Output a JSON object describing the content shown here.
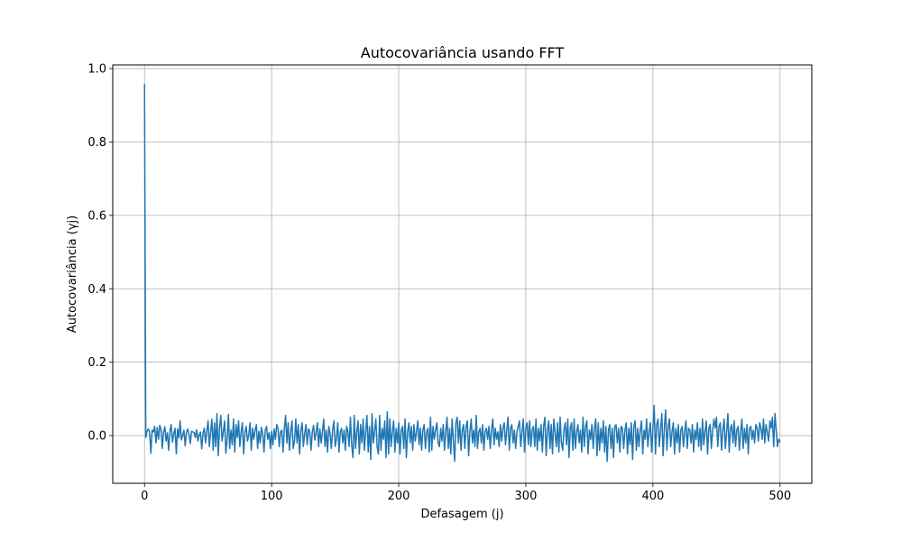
{
  "chart_data": {
    "type": "line",
    "title": "Autocovariância usando FFT",
    "xlabel": "Defasagem (j)",
    "ylabel": "Autocovariância (γj)",
    "xlim": [
      -25,
      525
    ],
    "ylim": [
      -0.13,
      1.01
    ],
    "xticks": [
      0,
      100,
      200,
      300,
      400,
      500
    ],
    "xtick_labels": [
      "0",
      "100",
      "200",
      "300",
      "400",
      "500"
    ],
    "yticks": [
      0.0,
      0.2,
      0.4,
      0.6,
      0.8,
      1.0
    ],
    "ytick_labels": [
      "0.0",
      "0.2",
      "0.4",
      "0.6",
      "0.8",
      "1.0"
    ],
    "grid": true,
    "line_color": "#1f77b4",
    "series": [
      {
        "x_start": 0,
        "x_step": 1,
        "values": [
          0.958,
          -0.005,
          0.012,
          0.018,
          0.01,
          -0.048,
          0.015,
          0.01,
          0.025,
          -0.02,
          0.022,
          -0.01,
          0.028,
          0.016,
          -0.035,
          0.01,
          0.024,
          -0.015,
          0.008,
          -0.04,
          0.012,
          0.03,
          -0.018,
          0.006,
          0.02,
          -0.05,
          0.018,
          -0.006,
          0.04,
          -0.012,
          0.0,
          0.015,
          -0.028,
          0.01,
          0.018,
          0.004,
          -0.022,
          0.012,
          0.01,
          0.008,
          -0.005,
          0.016,
          -0.015,
          0.002,
          0.01,
          -0.036,
          0.006,
          0.02,
          -0.02,
          0.012,
          0.04,
          -0.03,
          0.01,
          0.045,
          -0.04,
          0.035,
          -0.03,
          0.06,
          -0.055,
          0.02,
          0.055,
          -0.015,
          0.01,
          0.04,
          -0.048,
          -0.01,
          0.058,
          -0.035,
          0.015,
          -0.025,
          0.045,
          -0.045,
          0.03,
          -0.005,
          0.04,
          -0.03,
          0.01,
          0.035,
          -0.05,
          0.01,
          0.025,
          -0.015,
          0.0,
          0.035,
          -0.04,
          0.02,
          -0.01,
          0.015,
          0.03,
          -0.035,
          0.012,
          -0.02,
          0.022,
          0.006,
          -0.045,
          0.015,
          0.025,
          -0.01,
          0.008,
          -0.035,
          0.012,
          -0.025,
          0.018,
          -0.01,
          0.03,
          0.02,
          -0.03,
          0.01,
          0.015,
          -0.045,
          0.02,
          0.055,
          -0.02,
          0.035,
          -0.04,
          0.01,
          0.04,
          -0.035,
          -0.015,
          0.045,
          -0.02,
          0.03,
          -0.05,
          0.012,
          0.035,
          -0.03,
          0.005,
          0.03,
          -0.025,
          0.018,
          0.012,
          -0.04,
          0.01,
          0.028,
          -0.012,
          0.008,
          0.035,
          -0.03,
          0.018,
          -0.02,
          0.01,
          0.045,
          -0.03,
          0.015,
          -0.045,
          0.025,
          0.005,
          -0.035,
          0.015,
          0.04,
          -0.03,
          -0.01,
          0.035,
          -0.045,
          0.01,
          0.02,
          -0.02,
          0.015,
          -0.04,
          0.025,
          0.012,
          -0.03,
          0.05,
          -0.025,
          -0.06,
          0.055,
          -0.035,
          0.01,
          0.04,
          -0.05,
          0.03,
          -0.02,
          0.045,
          -0.04,
          0.01,
          0.055,
          -0.045,
          0.025,
          -0.065,
          0.06,
          -0.02,
          0.01,
          0.045,
          -0.03,
          -0.05,
          0.055,
          -0.04,
          0.02,
          -0.01,
          0.04,
          -0.06,
          0.065,
          -0.05,
          0.045,
          -0.03,
          0.01,
          0.04,
          -0.045,
          0.02,
          -0.02,
          0.035,
          -0.05,
          0.015,
          0.025,
          -0.035,
          0.045,
          -0.06,
          0.01,
          0.035,
          -0.02,
          0.025,
          -0.04,
          0.03,
          -0.015,
          0.01,
          0.04,
          -0.025,
          0.02,
          -0.04,
          0.015,
          0.03,
          -0.035,
          0.01,
          0.02,
          -0.045,
          0.05,
          -0.04,
          0.025,
          -0.01,
          0.015,
          0.035,
          -0.02,
          -0.03,
          0.02,
          -0.015,
          0.03,
          -0.04,
          0.01,
          0.05,
          -0.035,
          0.02,
          -0.05,
          0.045,
          -0.015,
          -0.07,
          0.035,
          0.05,
          -0.02,
          0.04,
          -0.04,
          0.015,
          0.03,
          -0.035,
          0.025,
          0.04,
          -0.055,
          0.01,
          0.045,
          -0.02,
          0.015,
          -0.03,
          0.055,
          -0.035,
          0.01,
          0.02,
          -0.02,
          0.03,
          -0.04,
          0.012,
          0.02,
          -0.01,
          0.025,
          -0.035,
          0.015,
          0.045,
          -0.025,
          0.02,
          -0.01,
          0.01,
          -0.03,
          0.03,
          -0.015,
          0.02,
          0.035,
          -0.025,
          0.015,
          0.05,
          -0.04,
          0.02,
          0.03,
          -0.02,
          0.015,
          -0.035,
          0.01,
          0.025,
          0.04,
          -0.03,
          0.01,
          0.045,
          -0.045,
          0.02,
          0.035,
          -0.025,
          0.04,
          -0.03,
          0.015,
          0.025,
          -0.03,
          0.045,
          -0.04,
          0.02,
          -0.015,
          0.03,
          -0.045,
          0.025,
          0.05,
          -0.055,
          0.015,
          0.04,
          -0.035,
          0.03,
          -0.05,
          0.045,
          0.01,
          -0.03,
          0.035,
          -0.045,
          0.05,
          -0.02,
          -0.04,
          0.015,
          0.035,
          -0.025,
          0.045,
          -0.06,
          0.02,
          0.035,
          -0.04,
          0.045,
          -0.035,
          0.01,
          0.03,
          -0.02,
          0.015,
          -0.045,
          0.05,
          -0.03,
          0.025,
          0.04,
          -0.05,
          0.015,
          -0.01,
          0.03,
          -0.035,
          0.02,
          0.045,
          -0.055,
          0.035,
          -0.04,
          0.02,
          -0.02,
          0.04,
          -0.045,
          0.025,
          -0.07,
          0.015,
          0.03,
          -0.035,
          0.02,
          -0.06,
          0.025,
          0.03,
          -0.02,
          0.02,
          -0.045,
          0.025,
          0.02,
          -0.035,
          0.015,
          0.035,
          -0.05,
          0.02,
          -0.025,
          0.035,
          -0.065,
          0.025,
          0.04,
          -0.04,
          0.02,
          -0.03,
          0.015,
          0.04,
          -0.05,
          0.015,
          -0.01,
          0.045,
          -0.03,
          0.01,
          0.035,
          -0.045,
          0.02,
          0.082,
          -0.05,
          0.03,
          0.045,
          -0.03,
          0.015,
          0.06,
          -0.055,
          0.02,
          0.07,
          -0.04,
          0.025,
          0.045,
          -0.03,
          0.01,
          0.035,
          -0.05,
          0.02,
          -0.02,
          0.03,
          -0.045,
          0.015,
          0.025,
          -0.03,
          0.01,
          0.04,
          -0.035,
          0.02,
          0.015,
          -0.02,
          0.03,
          -0.045,
          0.015,
          -0.01,
          0.035,
          -0.03,
          0.02,
          -0.04,
          0.045,
          -0.025,
          0.01,
          0.04,
          -0.05,
          0.02,
          0.03,
          -0.035,
          0.015,
          0.045,
          0.02,
          0.05,
          -0.03,
          0.025,
          0.035,
          -0.04,
          0.015,
          0.045,
          -0.035,
          0.01,
          0.06,
          -0.045,
          0.02,
          0.03,
          -0.02,
          0.04,
          -0.03,
          0.015,
          0.025,
          -0.04,
          0.01,
          0.045,
          -0.035,
          0.02,
          -0.02,
          0.03,
          -0.05,
          0.02,
          0.025,
          -0.01,
          0.015,
          -0.02,
          0.03,
          0.02,
          -0.015,
          0.035,
          0.02,
          -0.01,
          0.045,
          -0.02,
          0.03,
          0.01,
          -0.015,
          0.04,
          0.02,
          0.05,
          -0.03,
          0.06,
          0.015,
          -0.03,
          -0.01,
          -0.018
        ]
      }
    ]
  }
}
